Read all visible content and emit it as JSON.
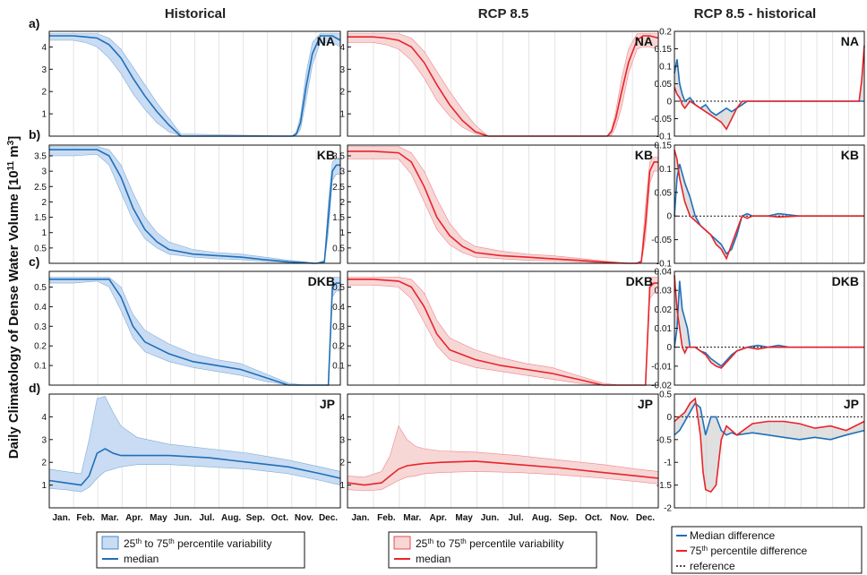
{
  "figure": {
    "ylabel": "Daily Climatology of Dense Water Volume [10",
    "ylabel_sup": "11",
    "ylabel_unit": " m",
    "ylabel_sup2": "3",
    "ylabel_close": "]",
    "columns": [
      "Historical",
      "RCP 8.5",
      "RCP 8.5 - historical"
    ],
    "row_labels": [
      "a)",
      "b)",
      "c)",
      "d)"
    ],
    "months": [
      "Jan.",
      "Feb.",
      "Mar.",
      "Apr.",
      "May",
      "Jun.",
      "Jul.",
      "Aug.",
      "Sep.",
      "Oct.",
      "Nov.",
      "Dec."
    ]
  },
  "colors": {
    "historical": "#1f6fb8",
    "historical_band": "#c9dcf3",
    "rcp": "#e8242a",
    "rcp_band": "#f7d6d6",
    "diff_fill": "#cccccc",
    "axis": "#111111",
    "grid": "#dddddd"
  },
  "legends": {
    "historical": {
      "band_a": "25",
      "band_sup_a": "th",
      "band_b": " to 75",
      "band_sup_b": "th",
      "band_c": " percentile variability",
      "line": "median"
    },
    "rcp": {
      "band_a": "25",
      "band_sup_a": "th",
      "band_b": " to 75",
      "band_sup_b": "th",
      "band_c": " percentile variability",
      "line": "median"
    },
    "diff": {
      "median": "Median difference",
      "p75_a": "75",
      "p75_sup": "th",
      "p75_b": " percentile difference",
      "reference": "reference"
    }
  },
  "chart_data": [
    {
      "type": "area",
      "panel": "a-historical",
      "title": "Historical",
      "region": "NA",
      "ylim": [
        0,
        4.7
      ],
      "yticks": [
        1,
        2,
        3,
        4
      ],
      "median_x": [
        0,
        30,
        45,
        60,
        75,
        90,
        105,
        120,
        135,
        150,
        165,
        300,
        305,
        310,
        315,
        322,
        330,
        340,
        347,
        355,
        365
      ],
      "median": [
        4.5,
        4.5,
        4.45,
        4.4,
        4.1,
        3.5,
        2.6,
        1.8,
        1.1,
        0.5,
        0.0,
        0.0,
        0.0,
        0.1,
        0.6,
        2.2,
        3.7,
        4.5,
        4.5,
        4.5,
        4.3
      ],
      "q25": [
        4.3,
        4.3,
        4.2,
        4.0,
        3.5,
        2.8,
        1.9,
        1.2,
        0.6,
        0.2,
        0.0,
        0.0,
        0.0,
        0.05,
        0.3,
        1.6,
        3.2,
        4.2,
        4.2,
        4.2,
        4.0
      ],
      "q75": [
        4.6,
        4.6,
        4.6,
        4.6,
        4.4,
        3.9,
        3.1,
        2.3,
        1.5,
        0.8,
        0.1,
        0.0,
        0.0,
        0.2,
        0.9,
        2.8,
        4.2,
        4.6,
        4.6,
        4.6,
        4.6
      ]
    },
    {
      "type": "area",
      "panel": "a-rcp",
      "title": "RCP 8.5",
      "region": "NA",
      "ylim": [
        0,
        4.7
      ],
      "yticks": [
        1,
        2,
        3,
        4
      ],
      "median_x": [
        0,
        30,
        45,
        60,
        75,
        90,
        105,
        120,
        135,
        150,
        165,
        300,
        305,
        310,
        315,
        322,
        330,
        340,
        347,
        355,
        365
      ],
      "median": [
        4.45,
        4.45,
        4.4,
        4.3,
        4.0,
        3.3,
        2.3,
        1.4,
        0.7,
        0.2,
        0.0,
        0.0,
        0.0,
        0.2,
        0.8,
        2.0,
        3.3,
        4.3,
        4.5,
        4.5,
        4.4
      ],
      "q25": [
        4.2,
        4.2,
        4.1,
        3.9,
        3.4,
        2.6,
        1.6,
        0.9,
        0.4,
        0.1,
        0.0,
        0.0,
        0.0,
        0.05,
        0.4,
        1.3,
        2.8,
        3.9,
        4.0,
        4.0,
        3.9
      ],
      "q75": [
        4.6,
        4.6,
        4.6,
        4.6,
        4.4,
        3.8,
        2.9,
        2.0,
        1.2,
        0.5,
        0.0,
        0.0,
        0.0,
        0.3,
        1.1,
        2.6,
        3.9,
        4.6,
        4.6,
        4.6,
        4.6
      ]
    },
    {
      "type": "line",
      "panel": "a-diff",
      "title": "RCP 8.5 - historical",
      "region": "NA",
      "ylim": [
        -0.1,
        0.2
      ],
      "yticks": [
        -0.1,
        -0.05,
        0,
        0.05,
        0.1,
        0.15,
        0.2
      ],
      "x": [
        0,
        5,
        10,
        15,
        20,
        30,
        40,
        50,
        60,
        70,
        80,
        90,
        100,
        110,
        120,
        130,
        140,
        160,
        200,
        300,
        355,
        360,
        365
      ],
      "median_diff": [
        0.08,
        0.12,
        0.05,
        0.02,
        0.0,
        0.01,
        -0.01,
        -0.02,
        -0.01,
        -0.03,
        -0.04,
        -0.03,
        -0.02,
        -0.03,
        -0.02,
        -0.01,
        0.0,
        0.0,
        0.0,
        0.0,
        0.0,
        0.0,
        0.0
      ],
      "p75_diff": [
        0.04,
        0.02,
        0.01,
        -0.01,
        -0.02,
        0.0,
        -0.01,
        -0.02,
        -0.03,
        -0.04,
        -0.05,
        -0.06,
        -0.08,
        -0.05,
        -0.02,
        0.0,
        0.0,
        0.0,
        0.0,
        0.0,
        0.0,
        0.06,
        0.16
      ]
    },
    {
      "type": "area",
      "panel": "b-historical",
      "title": "Historical",
      "region": "KB",
      "ylim": [
        0,
        3.85
      ],
      "yticks": [
        0.5,
        1,
        1.5,
        2,
        2.5,
        3,
        3.5
      ],
      "median_x": [
        0,
        30,
        60,
        75,
        90,
        105,
        120,
        135,
        150,
        180,
        210,
        240,
        270,
        300,
        320,
        330,
        335,
        340,
        345,
        350,
        355,
        360,
        365
      ],
      "median": [
        3.7,
        3.7,
        3.7,
        3.5,
        2.8,
        1.8,
        1.1,
        0.7,
        0.45,
        0.3,
        0.25,
        0.2,
        0.12,
        0.05,
        0.02,
        0.0,
        0.0,
        0.02,
        0.05,
        1.5,
        3.0,
        3.2,
        3.2
      ],
      "q25": [
        3.5,
        3.5,
        3.55,
        3.2,
        2.3,
        1.4,
        0.8,
        0.5,
        0.3,
        0.2,
        0.15,
        0.12,
        0.06,
        0.02,
        0.0,
        0.0,
        0.0,
        0.0,
        0.02,
        1.0,
        2.7,
        2.9,
        2.9
      ],
      "q75": [
        3.8,
        3.8,
        3.8,
        3.7,
        3.2,
        2.3,
        1.5,
        1.0,
        0.7,
        0.45,
        0.35,
        0.3,
        0.2,
        0.1,
        0.05,
        0.02,
        0.0,
        0.05,
        0.1,
        2.0,
        3.3,
        3.4,
        3.4
      ]
    },
    {
      "type": "area",
      "panel": "b-rcp",
      "title": "RCP 8.5",
      "region": "KB",
      "ylim": [
        0,
        3.85
      ],
      "yticks": [
        0.5,
        1,
        1.5,
        2,
        2.5,
        3,
        3.5
      ],
      "median_x": [
        0,
        30,
        60,
        75,
        90,
        105,
        120,
        135,
        150,
        180,
        210,
        240,
        270,
        300,
        320,
        330,
        335,
        340,
        345,
        350,
        355,
        360,
        365
      ],
      "median": [
        3.65,
        3.65,
        3.6,
        3.3,
        2.5,
        1.5,
        0.9,
        0.55,
        0.35,
        0.25,
        0.2,
        0.15,
        0.1,
        0.04,
        0.01,
        0.0,
        0.0,
        0.0,
        0.05,
        1.3,
        3.0,
        3.3,
        3.3
      ],
      "q25": [
        3.4,
        3.4,
        3.4,
        2.9,
        2.0,
        1.1,
        0.6,
        0.35,
        0.2,
        0.15,
        0.1,
        0.08,
        0.05,
        0.01,
        0.0,
        0.0,
        0.0,
        0.0,
        0.02,
        0.8,
        2.6,
        3.0,
        3.0
      ],
      "q75": [
        3.8,
        3.8,
        3.8,
        3.6,
        3.0,
        2.1,
        1.3,
        0.8,
        0.55,
        0.4,
        0.3,
        0.25,
        0.17,
        0.08,
        0.03,
        0.0,
        0.0,
        0.02,
        0.1,
        1.9,
        3.3,
        3.45,
        3.45
      ]
    },
    {
      "type": "line",
      "panel": "b-diff",
      "title": "RCP 8.5 - historical",
      "region": "KB",
      "ylim": [
        -0.1,
        0.15
      ],
      "yticks": [
        -0.1,
        -0.05,
        0,
        0.05,
        0.1,
        0.15
      ],
      "x": [
        0,
        5,
        10,
        20,
        30,
        40,
        50,
        60,
        70,
        80,
        90,
        100,
        110,
        120,
        130,
        140,
        150,
        160,
        180,
        200,
        240,
        300,
        365
      ],
      "median_diff": [
        0.0,
        0.08,
        0.11,
        0.07,
        0.04,
        0.0,
        -0.02,
        -0.03,
        -0.04,
        -0.05,
        -0.06,
        -0.08,
        -0.07,
        -0.04,
        0.0,
        0.005,
        0.0,
        0.0,
        0.0,
        0.005,
        0.0,
        0.0,
        0.0
      ],
      "p75_diff": [
        0.14,
        0.12,
        0.08,
        0.03,
        0.0,
        -0.01,
        -0.02,
        -0.03,
        -0.04,
        -0.06,
        -0.07,
        -0.09,
        -0.06,
        -0.03,
        0.0,
        -0.005,
        0.0,
        0.0,
        0.0,
        -0.002,
        0.0,
        0.0,
        0.0
      ]
    },
    {
      "type": "area",
      "panel": "c-historical",
      "title": "Historical",
      "region": "DKB",
      "ylim": [
        0,
        0.58
      ],
      "yticks": [
        0.1,
        0.2,
        0.3,
        0.4,
        0.5
      ],
      "median_x": [
        0,
        30,
        60,
        75,
        90,
        105,
        120,
        150,
        180,
        210,
        240,
        270,
        300,
        320,
        330,
        340,
        345,
        350,
        355,
        360,
        365
      ],
      "median": [
        0.54,
        0.54,
        0.54,
        0.54,
        0.45,
        0.3,
        0.22,
        0.16,
        0.12,
        0.1,
        0.08,
        0.04,
        0.0,
        0.0,
        0.0,
        0.0,
        0.0,
        0.0,
        0.5,
        0.52,
        0.52
      ],
      "q25": [
        0.52,
        0.52,
        0.53,
        0.5,
        0.38,
        0.24,
        0.17,
        0.12,
        0.09,
        0.07,
        0.05,
        0.02,
        0.0,
        0.0,
        0.0,
        0.0,
        0.0,
        0.0,
        0.45,
        0.48,
        0.48
      ],
      "q75": [
        0.55,
        0.55,
        0.55,
        0.55,
        0.5,
        0.36,
        0.28,
        0.21,
        0.16,
        0.13,
        0.11,
        0.06,
        0.01,
        0.0,
        0.0,
        0.0,
        0.0,
        0.0,
        0.55,
        0.55,
        0.55
      ]
    },
    {
      "type": "area",
      "panel": "c-rcp",
      "title": "RCP 8.5",
      "region": "DKB",
      "ylim": [
        0,
        0.58
      ],
      "yticks": [
        0.1,
        0.2,
        0.3,
        0.4,
        0.5
      ],
      "median_x": [
        0,
        30,
        60,
        75,
        90,
        105,
        120,
        150,
        180,
        210,
        240,
        270,
        300,
        320,
        330,
        340,
        345,
        350,
        355,
        360,
        365
      ],
      "median": [
        0.54,
        0.54,
        0.53,
        0.5,
        0.4,
        0.26,
        0.18,
        0.13,
        0.1,
        0.08,
        0.06,
        0.03,
        0.0,
        0.0,
        0.0,
        0.0,
        0.0,
        0.0,
        0.5,
        0.52,
        0.52
      ],
      "q25": [
        0.51,
        0.51,
        0.5,
        0.44,
        0.32,
        0.2,
        0.13,
        0.09,
        0.07,
        0.05,
        0.03,
        0.01,
        0.0,
        0.0,
        0.0,
        0.0,
        0.0,
        0.0,
        0.44,
        0.47,
        0.47
      ],
      "q75": [
        0.55,
        0.55,
        0.55,
        0.54,
        0.47,
        0.33,
        0.24,
        0.18,
        0.14,
        0.11,
        0.09,
        0.05,
        0.01,
        0.0,
        0.0,
        0.0,
        0.0,
        0.0,
        0.55,
        0.55,
        0.55
      ]
    },
    {
      "type": "line",
      "panel": "c-diff",
      "title": "RCP 8.5 - historical",
      "region": "DKB",
      "ylim": [
        -0.02,
        0.04
      ],
      "yticks": [
        -0.02,
        -0.01,
        0,
        0.01,
        0.02,
        0.03,
        0.04
      ],
      "x": [
        0,
        5,
        10,
        15,
        20,
        25,
        30,
        40,
        50,
        60,
        70,
        80,
        90,
        100,
        110,
        120,
        140,
        160,
        180,
        200,
        220,
        240,
        365
      ],
      "median_diff": [
        0.0,
        0.01,
        0.035,
        0.02,
        0.015,
        0.01,
        0.0,
        0.0,
        -0.002,
        -0.003,
        -0.006,
        -0.008,
        -0.01,
        -0.007,
        -0.004,
        -0.002,
        0.0,
        0.001,
        0.0,
        0.001,
        0.0,
        0.0,
        0.0
      ],
      "p75_diff": [
        0.038,
        0.02,
        0.01,
        0.0,
        -0.003,
        0.0,
        0.0,
        0.0,
        -0.002,
        -0.004,
        -0.008,
        -0.01,
        -0.011,
        -0.008,
        -0.005,
        -0.002,
        0.0,
        -0.001,
        0.0,
        0.0,
        0.0,
        0.0,
        0.0
      ]
    },
    {
      "type": "area",
      "panel": "d-historical",
      "title": "Historical",
      "region": "JP",
      "ylim": [
        0,
        5
      ],
      "yticks": [
        1,
        2,
        3,
        4
      ],
      "median_x": [
        0,
        20,
        40,
        50,
        60,
        70,
        80,
        90,
        110,
        150,
        200,
        250,
        300,
        340,
        365
      ],
      "median": [
        1.2,
        1.1,
        1.0,
        1.4,
        2.4,
        2.6,
        2.4,
        2.3,
        2.3,
        2.3,
        2.2,
        2.0,
        1.8,
        1.5,
        1.3
      ],
      "q25": [
        0.85,
        0.8,
        0.7,
        0.9,
        1.3,
        1.6,
        1.7,
        1.8,
        1.9,
        1.9,
        1.8,
        1.7,
        1.5,
        1.2,
        1.0
      ],
      "q75": [
        1.7,
        1.6,
        1.5,
        3.0,
        4.8,
        4.9,
        4.2,
        3.6,
        3.1,
        2.8,
        2.6,
        2.4,
        2.1,
        1.8,
        1.6
      ]
    },
    {
      "type": "area",
      "panel": "d-rcp",
      "title": "RCP 8.5",
      "region": "JP",
      "ylim": [
        0,
        5
      ],
      "yticks": [
        1,
        2,
        3,
        4
      ],
      "median_x": [
        0,
        20,
        40,
        50,
        60,
        70,
        80,
        90,
        110,
        150,
        200,
        250,
        300,
        340,
        365
      ],
      "median": [
        1.1,
        1.0,
        1.1,
        1.4,
        1.7,
        1.85,
        1.9,
        1.95,
        2.0,
        2.05,
        1.9,
        1.75,
        1.55,
        1.4,
        1.3
      ],
      "q25": [
        0.8,
        0.75,
        0.8,
        1.0,
        1.2,
        1.35,
        1.4,
        1.5,
        1.55,
        1.6,
        1.55,
        1.45,
        1.3,
        1.15,
        1.05
      ],
      "q75": [
        1.4,
        1.35,
        1.6,
        2.3,
        3.6,
        3.0,
        2.7,
        2.6,
        2.5,
        2.45,
        2.3,
        2.1,
        1.9,
        1.7,
        1.6
      ]
    },
    {
      "type": "line",
      "panel": "d-diff",
      "title": "RCP 8.5 - historical",
      "region": "JP",
      "ylim": [
        -2,
        0.5
      ],
      "yticks": [
        -2,
        -1.5,
        -1,
        -0.5,
        0,
        0.5
      ],
      "x": [
        0,
        10,
        20,
        30,
        40,
        50,
        55,
        60,
        70,
        80,
        90,
        100,
        110,
        120,
        150,
        180,
        210,
        240,
        270,
        300,
        330,
        365
      ],
      "median_diff": [
        -0.4,
        -0.3,
        -0.1,
        0.1,
        0.3,
        0.2,
        -0.1,
        -0.4,
        0.0,
        0.0,
        -0.3,
        -0.4,
        -0.35,
        -0.4,
        -0.35,
        -0.4,
        -0.45,
        -0.5,
        -0.45,
        -0.5,
        -0.4,
        -0.3
      ],
      "p75_diff": [
        -0.1,
        0.0,
        0.1,
        0.3,
        0.4,
        -0.4,
        -1.2,
        -1.6,
        -1.65,
        -1.5,
        -0.5,
        -0.2,
        -0.3,
        -0.4,
        -0.15,
        -0.1,
        -0.1,
        -0.15,
        -0.25,
        -0.2,
        -0.3,
        -0.1
      ]
    }
  ]
}
